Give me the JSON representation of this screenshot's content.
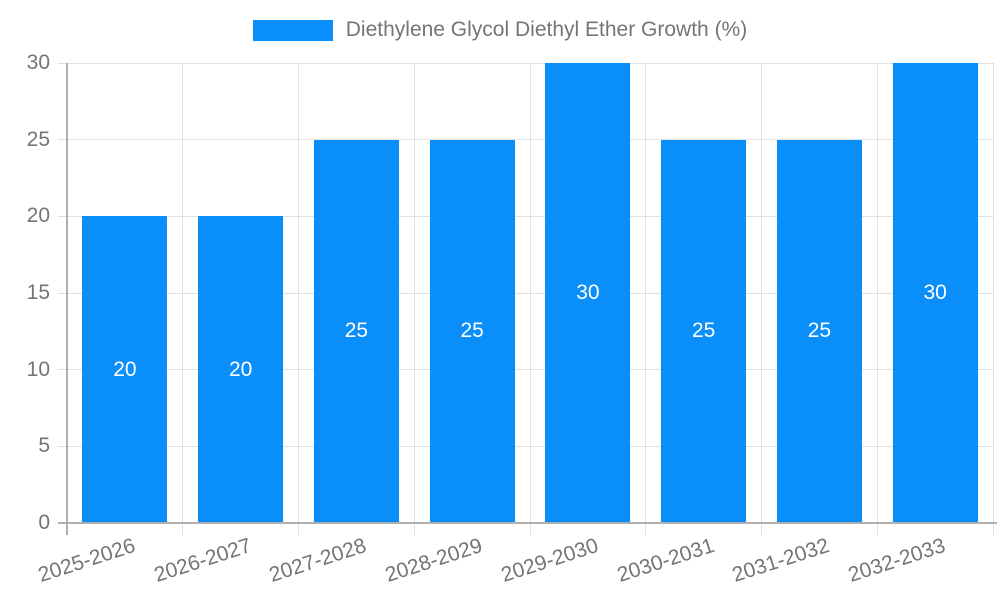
{
  "legend": {
    "label": "Diethylene Glycol Diethyl Ether Growth (%)"
  },
  "chart_data": {
    "type": "bar",
    "title": "Diethylene Glycol Diethyl Ether Growth (%)",
    "categories": [
      "2025-2026",
      "2026-2027",
      "2027-2028",
      "2028-2029",
      "2029-2030",
      "2030-2031",
      "2031-2032",
      "2032-2033"
    ],
    "values": [
      20,
      20,
      25,
      25,
      30,
      25,
      25,
      30
    ],
    "bar_labels": [
      "20",
      "20",
      "25",
      "25",
      "30",
      "25",
      "25",
      "30"
    ],
    "yticks": [
      0,
      5,
      10,
      15,
      20,
      25,
      30
    ],
    "ytick_labels": [
      "0",
      "5",
      "10",
      "15",
      "20",
      "25",
      "30"
    ],
    "ylim": [
      0,
      30
    ],
    "xlabel": "",
    "ylabel": "",
    "grid": true,
    "legend_position": "top-center",
    "bar_label_position": "inside-center",
    "x_label_rotation_deg": -18,
    "colors": {
      "bar": "#0a8ef9",
      "grid": "#e0e0e0",
      "axis": "#b0b0b0",
      "tick_text": "#757575",
      "bar_label_text": "#ffffff",
      "background": "#ffffff"
    }
  }
}
